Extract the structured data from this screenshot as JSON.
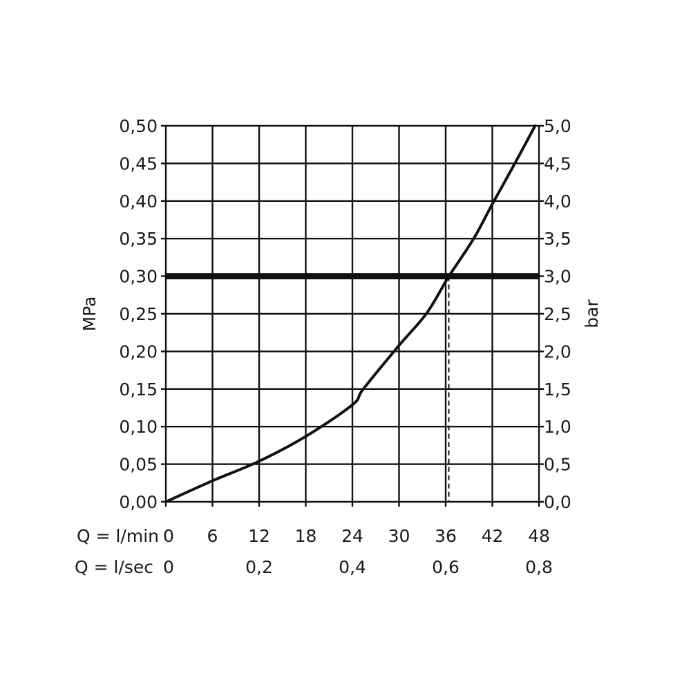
{
  "chart_data": {
    "type": "line",
    "title": "",
    "ylabel_left": "MPa",
    "ylabel_right": "bar",
    "xlabel_primary": "Q = l/min",
    "xlabel_secondary": "Q = l/sec",
    "xlim": [
      0,
      48
    ],
    "ylim_left": [
      0,
      0.5
    ],
    "ylim_right": [
      0,
      5.0
    ],
    "grid": true,
    "x_ticks_primary": [
      "0",
      "6",
      "12",
      "18",
      "24",
      "30",
      "36",
      "42",
      "48"
    ],
    "x_ticks_primary_values": [
      0,
      6,
      12,
      18,
      24,
      30,
      36,
      42,
      48
    ],
    "x_ticks_secondary": [
      "0",
      "0,2",
      "0,4",
      "0,6",
      "0,8"
    ],
    "x_ticks_secondary_values": [
      0,
      12,
      24,
      36,
      48
    ],
    "y_ticks_left": [
      "0,00",
      "0,05",
      "0,10",
      "0,15",
      "0,20",
      "0,25",
      "0,30",
      "0,35",
      "0,40",
      "0,45",
      "0,50"
    ],
    "y_ticks_right": [
      "0,0",
      "0,5",
      "1,0",
      "1,5",
      "2,0",
      "2,5",
      "3,0",
      "3,5",
      "4,0",
      "4,5",
      "5,0"
    ],
    "y_ticks_values": [
      0,
      0.05,
      0.1,
      0.15,
      0.2,
      0.25,
      0.3,
      0.35,
      0.4,
      0.45,
      0.5
    ],
    "series": [
      {
        "x": [
          0,
          6,
          12,
          18,
          24,
          25.4,
          30,
          33.5,
          36,
          36.4,
          39.6,
          42,
          44.9,
          47.5
        ],
        "y": [
          0,
          0.028,
          0.054,
          0.087,
          0.129,
          0.15,
          0.208,
          0.25,
          0.293,
          0.3,
          0.35,
          0.396,
          0.45,
          0.5
        ]
      }
    ],
    "reference_line_y": 0.3,
    "reference_line_x": 36.4,
    "colors": {
      "line": "#111111",
      "grid": "#111111"
    }
  }
}
